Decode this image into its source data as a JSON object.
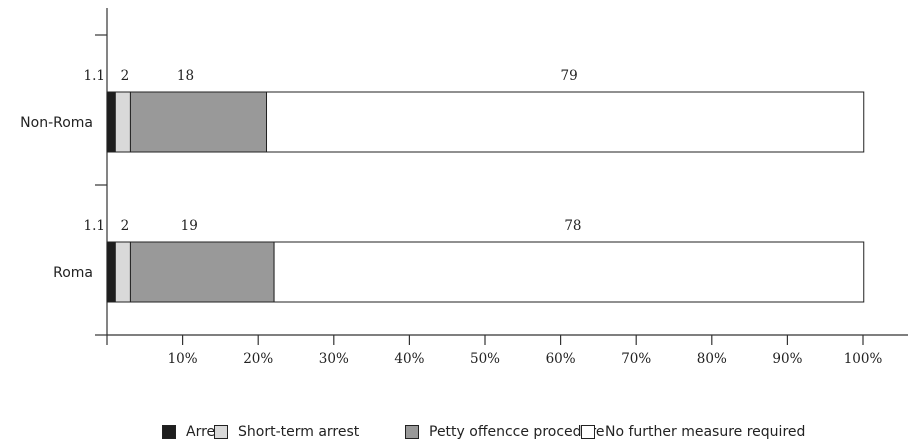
{
  "chart_data": {
    "type": "bar",
    "orientation": "horizontal",
    "stacked": true,
    "categories": [
      "Non-Roma",
      "Roma"
    ],
    "series": [
      {
        "name": "Arrest",
        "values": [
          1.1,
          1.1
        ],
        "labels": [
          "1.1",
          "1.1"
        ],
        "color": "#1e1e1e"
      },
      {
        "name": "Short-term arrest",
        "values": [
          2,
          2
        ],
        "labels": [
          "2",
          "2"
        ],
        "color": "#d9d9d9"
      },
      {
        "name": "Petty offencce procedure",
        "values": [
          18,
          19
        ],
        "labels": [
          "18",
          "19"
        ],
        "color": "#999999"
      },
      {
        "name": "No further measure required",
        "values": [
          79,
          78
        ],
        "labels": [
          "79",
          "78"
        ],
        "color": "#ffffff"
      }
    ],
    "x_ticks": [
      "10%",
      "20%",
      "30%",
      "40%",
      "50%",
      "60%",
      "70%",
      "80%",
      "90%",
      "100%"
    ],
    "xlim": [
      0,
      100
    ],
    "grid": false,
    "legend_position": "bottom"
  }
}
